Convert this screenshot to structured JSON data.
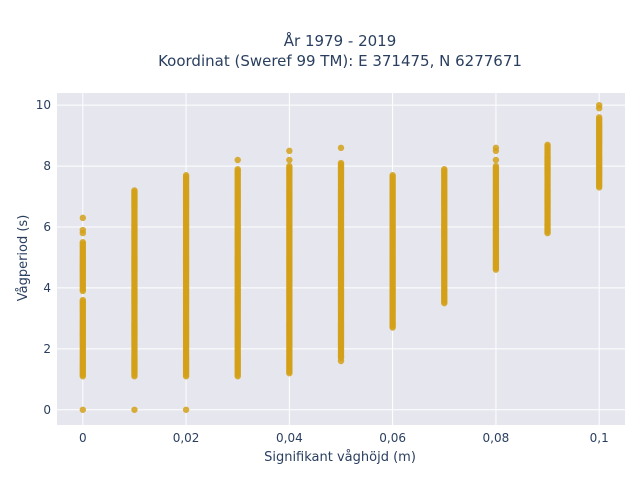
{
  "chart_data": {
    "type": "scatter",
    "title_line1": "År 1979 - 2019",
    "title_line2": "Koordinat (Sweref 99 TM): E 371475, N 6277671",
    "xlabel": "Signifikant våghöjd (m)",
    "ylabel": "Vågperiod (s)",
    "xlim": [
      -0.005,
      0.105
    ],
    "ylim": [
      -0.5,
      10.4
    ],
    "x_ticks": [
      0,
      0.02,
      0.04,
      0.06,
      0.08,
      0.1
    ],
    "x_tick_labels": [
      "0",
      "0,02",
      "0,04",
      "0,06",
      "0,08",
      "0,1"
    ],
    "y_ticks": [
      0,
      2,
      4,
      6,
      8,
      10
    ],
    "y_tick_labels": [
      "0",
      "2",
      "4",
      "6",
      "8",
      "10"
    ],
    "grid": true,
    "colors": {
      "marker": "#D4A017",
      "plot_bg": "#E5E6EE",
      "grid": "#ffffff",
      "text": "#2a3f5f"
    },
    "series": [
      {
        "points": [
          {
            "x": 0,
            "ranges": [
              [
                1.1,
                3.6
              ],
              [
                3.9,
                5.5
              ]
            ],
            "extra": [
              0,
              5.8,
              5.9,
              6.3
            ]
          },
          {
            "x": 0.01,
            "ranges": [
              [
                1.1,
                7.2
              ]
            ],
            "extra": [
              0
            ]
          },
          {
            "x": 0.02,
            "ranges": [
              [
                1.1,
                7.7
              ]
            ],
            "extra": [
              0
            ]
          },
          {
            "x": 0.03,
            "ranges": [
              [
                1.1,
                7.9
              ]
            ],
            "extra": [
              8.2
            ]
          },
          {
            "x": 0.04,
            "ranges": [
              [
                1.2,
                8.0
              ]
            ],
            "extra": [
              8.2,
              8.5
            ]
          },
          {
            "x": 0.05,
            "ranges": [
              [
                1.7,
                8.1
              ]
            ],
            "extra": [
              1.6,
              8.6
            ]
          },
          {
            "x": 0.06,
            "ranges": [
              [
                2.7,
                7.7
              ]
            ],
            "extra": []
          },
          {
            "x": 0.07,
            "ranges": [
              [
                3.5,
                7.9
              ]
            ],
            "extra": []
          },
          {
            "x": 0.08,
            "ranges": [
              [
                4.6,
                8.0
              ]
            ],
            "extra": [
              8.2,
              8.5,
              8.6
            ]
          },
          {
            "x": 0.09,
            "ranges": [
              [
                5.8,
                8.7
              ]
            ],
            "extra": []
          },
          {
            "x": 0.1,
            "ranges": [
              [
                7.3,
                9.6
              ]
            ],
            "extra": [
              9.9,
              10.0
            ]
          }
        ]
      }
    ]
  }
}
